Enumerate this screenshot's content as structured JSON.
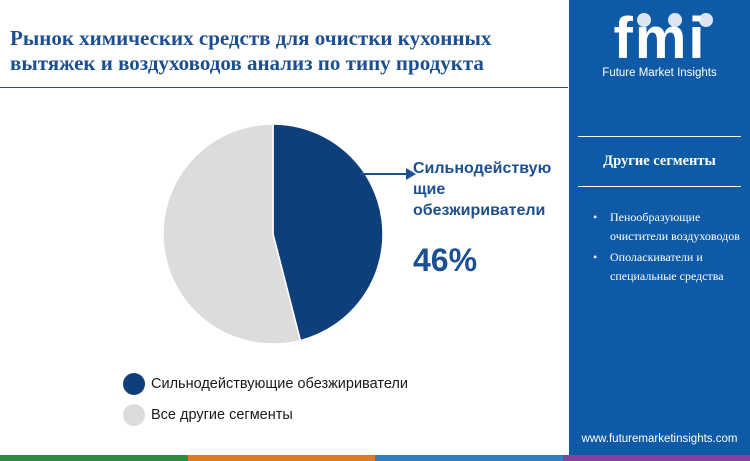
{
  "title": "Рынок химических средств для очистки кухонных вытяжек и воздуховодов анализ по типу продукта",
  "chart_data": {
    "type": "pie",
    "title": "Рынок химических средств для очистки кухонных вытяжек и воздуховодов анализ по типу продукта",
    "slices": [
      {
        "label": "Сильнодействующие обезжириватели",
        "value": 46,
        "color": "#0f3f7a"
      },
      {
        "label": "Все другие сегменты",
        "value": 54,
        "color": "#dcdcdc"
      }
    ],
    "legend": "bottom",
    "callout": {
      "label": "Сильнодействую щие обезжириватели",
      "value": "46%"
    }
  },
  "legend": {
    "items": [
      {
        "label": "Сильнодействующие обезжириватели",
        "color": "#0f3f7a"
      },
      {
        "label": "Все другие сегменты",
        "color": "#dcdcdc"
      }
    ]
  },
  "panel": {
    "logo_text": "fmi",
    "logo_subtitle": "Future Market Insights",
    "heading": "Другие сегменты",
    "items": [
      "Пенообразующие очистители воздуховодов",
      "Ополаскиватели и специальные средства"
    ],
    "website": "www.futuremarketinsights.com",
    "background": "#0f5aa6"
  },
  "bottom_bar_colors": [
    "#2e8b3e",
    "#e07a1f",
    "#2f7fc1",
    "#8a3fa0"
  ]
}
